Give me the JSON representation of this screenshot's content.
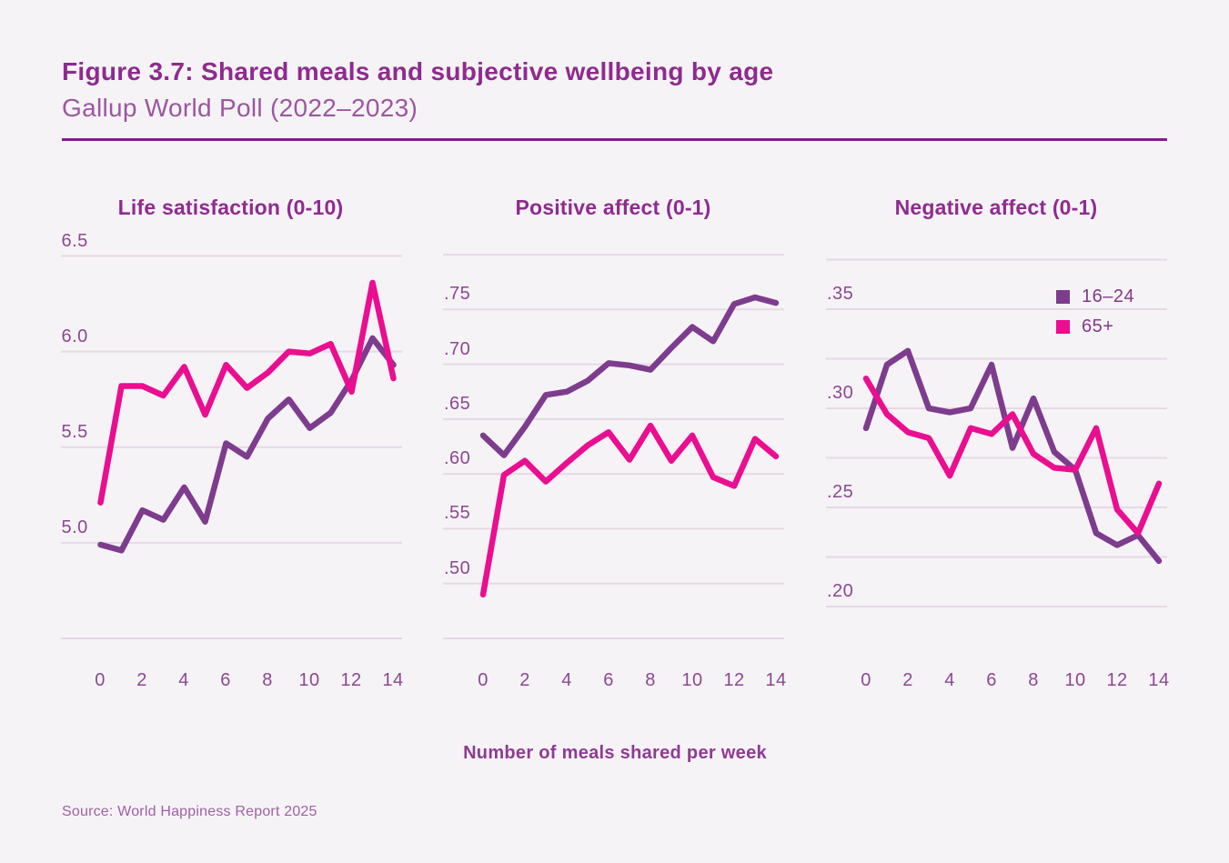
{
  "figure": {
    "title": "Figure 3.7: Shared meals and subjective wellbeing by age",
    "subtitle": "Gallup World Poll (2022–2023)",
    "x_axis_title": "Number of meals shared per week",
    "source": "Source: World Happiness Report 2025"
  },
  "colors": {
    "background": "#F6F3F7",
    "series_16_24": "#7E3C8E",
    "series_65_plus": "#EA0E90",
    "gridline": "#E5D9E3",
    "title_text": "#8E2B8D",
    "subtitle_text": "#9B57A0",
    "tick_text": "#8C4792",
    "divider": "#7B2483"
  },
  "legend": {
    "position": "top-right-of-third-chart",
    "entries": [
      {
        "label": "16–24",
        "color": "#7E3C8E"
      },
      {
        "label": "65+",
        "color": "#EA0E90"
      }
    ]
  },
  "chart_data": [
    {
      "type": "line",
      "title": "Life satisfaction (0-10)",
      "xlabel": "Number of meals shared per week",
      "x": [
        0,
        1,
        2,
        3,
        4,
        5,
        6,
        7,
        8,
        9,
        10,
        11,
        12,
        13,
        14
      ],
      "x_tick_labels": [
        "0",
        "2",
        "4",
        "6",
        "8",
        "10",
        "12",
        "14"
      ],
      "ylim": [
        4.5,
        6.5
      ],
      "gridlines": [
        6.5,
        6.0,
        5.5,
        5.0,
        4.5
      ],
      "y_tick_labels": [
        {
          "v": 6.5,
          "t": "6.5"
        },
        {
          "v": 6.0,
          "t": "6.0"
        },
        {
          "v": 5.5,
          "t": "5.5"
        },
        {
          "v": 5.0,
          "t": "5.0"
        }
      ],
      "series": [
        {
          "name": "16–24",
          "color": "#7E3C8E",
          "values": [
            4.99,
            4.96,
            5.17,
            5.12,
            5.29,
            5.11,
            5.52,
            5.45,
            5.65,
            5.75,
            5.6,
            5.68,
            5.85,
            6.07,
            5.93
          ]
        },
        {
          "name": "65+",
          "color": "#EA0E90",
          "values": [
            5.21,
            5.82,
            5.82,
            5.77,
            5.92,
            5.67,
            5.93,
            5.81,
            5.89,
            6.0,
            5.99,
            6.04,
            5.79,
            6.36,
            5.86
          ]
        }
      ]
    },
    {
      "type": "line",
      "title": "Positive affect (0-1)",
      "xlabel": "Number of meals shared per week",
      "x": [
        0,
        1,
        2,
        3,
        4,
        5,
        6,
        7,
        8,
        9,
        10,
        11,
        12,
        13,
        14
      ],
      "x_tick_labels": [
        "0",
        "2",
        "4",
        "6",
        "8",
        "10",
        "12",
        "14"
      ],
      "ylim": [
        0.45,
        0.8
      ],
      "gridlines": [
        0.8,
        0.75,
        0.7,
        0.65,
        0.6,
        0.55,
        0.5,
        0.45
      ],
      "y_tick_labels": [
        {
          "v": 0.75,
          "t": ".75"
        },
        {
          "v": 0.7,
          "t": ".70"
        },
        {
          "v": 0.65,
          "t": ".65"
        },
        {
          "v": 0.6,
          "t": ".60"
        },
        {
          "v": 0.55,
          "t": ".55"
        },
        {
          "v": 0.5,
          "t": ".50"
        }
      ],
      "series": [
        {
          "name": "16–24",
          "color": "#7E3C8E",
          "values": [
            0.635,
            0.617,
            0.643,
            0.672,
            0.675,
            0.685,
            0.701,
            0.699,
            0.695,
            0.715,
            0.734,
            0.721,
            0.755,
            0.761,
            0.756
          ]
        },
        {
          "name": "65+",
          "color": "#EA0E90",
          "values": [
            0.49,
            0.599,
            0.612,
            0.593,
            0.61,
            0.626,
            0.638,
            0.613,
            0.644,
            0.612,
            0.635,
            0.597,
            0.589,
            0.632,
            0.616
          ]
        }
      ]
    },
    {
      "type": "line",
      "title": "Negative affect (0-1)",
      "xlabel": "Number of meals shared per week",
      "x": [
        0,
        1,
        2,
        3,
        4,
        5,
        6,
        7,
        8,
        9,
        10,
        11,
        12,
        13,
        14
      ],
      "x_tick_labels": [
        "0",
        "2",
        "4",
        "6",
        "8",
        "10",
        "12",
        "14"
      ],
      "ylim": [
        0.2,
        0.375
      ],
      "gridlines": [
        0.375,
        0.35,
        0.325,
        0.3,
        0.275,
        0.25,
        0.225,
        0.2
      ],
      "y_tick_labels": [
        {
          "v": 0.35,
          "t": ".35"
        },
        {
          "v": 0.3,
          "t": ".30"
        },
        {
          "v": 0.25,
          "t": ".25"
        },
        {
          "v": 0.2,
          "t": ".20"
        }
      ],
      "series": [
        {
          "name": "16–24",
          "color": "#7E3C8E",
          "values": [
            0.29,
            0.322,
            0.329,
            0.3,
            0.298,
            0.3,
            0.322,
            0.28,
            0.305,
            0.278,
            0.269,
            0.237,
            0.231,
            0.236,
            0.223
          ]
        },
        {
          "name": "65+",
          "color": "#EA0E90",
          "values": [
            0.315,
            0.297,
            0.288,
            0.285,
            0.266,
            0.29,
            0.287,
            0.297,
            0.277,
            0.27,
            0.269,
            0.29,
            0.249,
            0.237,
            0.262
          ]
        }
      ]
    }
  ]
}
